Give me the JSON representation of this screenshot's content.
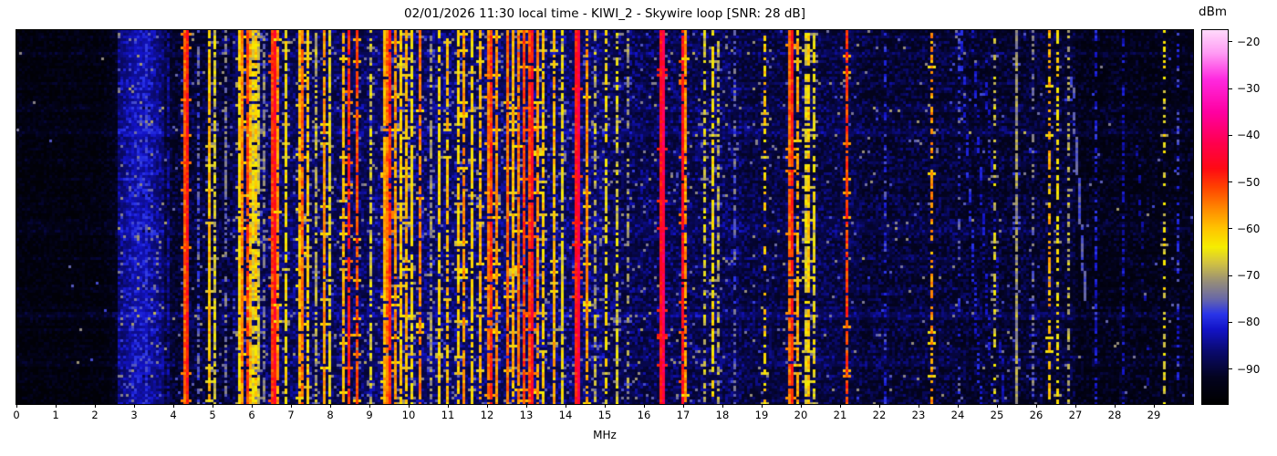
{
  "header": {
    "title": "02/01/2026 11:30 local time - KIWI_2 - Skywire loop [SNR: 28 dB]"
  },
  "colors": {
    "background": "#ffffff",
    "frame": "#000000",
    "text": "#000000"
  },
  "chart_data": {
    "type": "heatmap",
    "subtype": "radio-spectrogram-waterfall",
    "title": "02/01/2026 11:30 local time - KIWI_2 - Skywire loop [SNR: 28 dB]",
    "xlabel": "MHz",
    "x_range_mhz": [
      0,
      30
    ],
    "x_ticks": [
      0,
      1,
      2,
      3,
      4,
      5,
      6,
      7,
      8,
      9,
      10,
      11,
      12,
      13,
      14,
      15,
      16,
      17,
      18,
      19,
      20,
      21,
      22,
      23,
      24,
      25,
      26,
      27,
      28,
      29
    ],
    "grid": false,
    "legend": "colorbar-right",
    "colorbar": {
      "label": "dBm",
      "vmin": -97.5,
      "vmax": -17.5,
      "ticks": [
        {
          "v": -20,
          "label": "−20"
        },
        {
          "v": -30,
          "label": "−30"
        },
        {
          "v": -40,
          "label": "−40"
        },
        {
          "v": -50,
          "label": "−50"
        },
        {
          "v": -60,
          "label": "−60"
        },
        {
          "v": -70,
          "label": "−70"
        },
        {
          "v": -80,
          "label": "−80"
        },
        {
          "v": -90,
          "label": "−90"
        }
      ],
      "stops": [
        {
          "t": 0.0,
          "c": "#000000"
        },
        {
          "t": 0.07,
          "c": "#03031f"
        },
        {
          "t": 0.14,
          "c": "#0a0a6e"
        },
        {
          "t": 0.2,
          "c": "#1313c8"
        },
        {
          "t": 0.24,
          "c": "#2a35e8"
        },
        {
          "t": 0.28,
          "c": "#6868a8"
        },
        {
          "t": 0.33,
          "c": "#9a9176"
        },
        {
          "t": 0.38,
          "c": "#d6c63e"
        },
        {
          "t": 0.42,
          "c": "#f6ee00"
        },
        {
          "t": 0.47,
          "c": "#ffc400"
        },
        {
          "t": 0.52,
          "c": "#ff8c00"
        },
        {
          "t": 0.58,
          "c": "#ff4200"
        },
        {
          "t": 0.63,
          "c": "#ff0a14"
        },
        {
          "t": 0.7,
          "c": "#ff0050"
        },
        {
          "t": 0.78,
          "c": "#ff00a0"
        },
        {
          "t": 0.87,
          "c": "#ff2ae0"
        },
        {
          "t": 0.94,
          "c": "#ff9cf4"
        },
        {
          "t": 1.0,
          "c": "#ffd9fb"
        }
      ]
    },
    "noise_regions": [
      {
        "f0": 0.0,
        "f1": 2.55,
        "floor": -96.5,
        "jit": 5.0,
        "fleck": 0.002
      },
      {
        "f0": 2.55,
        "f1": 3.75,
        "floor": -91.0,
        "jit": 7.0,
        "fleck": 0.05
      },
      {
        "f0": 3.75,
        "f1": 4.2,
        "floor": -93.5,
        "jit": 6.5,
        "fleck": 0.01
      },
      {
        "f0": 4.2,
        "f1": 5.5,
        "floor": -92.5,
        "jit": 7.0,
        "fleck": 0.02
      },
      {
        "f0": 5.5,
        "f1": 9.0,
        "floor": -90.5,
        "jit": 8.0,
        "fleck": 0.04
      },
      {
        "f0": 9.0,
        "f1": 15.0,
        "floor": -89.5,
        "jit": 8.0,
        "fleck": 0.06
      },
      {
        "f0": 15.0,
        "f1": 18.5,
        "floor": -91.0,
        "jit": 8.0,
        "fleck": 0.03
      },
      {
        "f0": 18.5,
        "f1": 21.5,
        "floor": -91.5,
        "jit": 7.0,
        "fleck": 0.02
      },
      {
        "f0": 21.5,
        "f1": 24.0,
        "floor": -92.5,
        "jit": 7.0,
        "fleck": 0.012
      },
      {
        "f0": 24.0,
        "f1": 27.0,
        "floor": -93.0,
        "jit": 7.0,
        "fleck": 0.015
      },
      {
        "f0": 27.0,
        "f1": 30.0,
        "floor": -95.0,
        "jit": 6.0,
        "fleck": 0.006
      }
    ],
    "broadband_glow": {
      "center_mhz": 3.15,
      "sigma_mhz": 0.4,
      "amp_db": 6.5
    },
    "signals": [
      {
        "f": 3.32,
        "w": 0.07,
        "p": -80,
        "d": 0.85
      },
      {
        "f": 3.9,
        "w": 0.07,
        "p": -85,
        "d": 0.8
      },
      {
        "f": 4.33,
        "w": 0.1,
        "p": -48,
        "d": 1.0
      },
      {
        "f": 4.62,
        "w": 0.07,
        "p": -76,
        "d": 0.6
      },
      {
        "f": 4.93,
        "w": 0.08,
        "p": -60,
        "d": 0.95
      },
      {
        "f": 5.07,
        "w": 0.07,
        "p": -67,
        "d": 0.8
      },
      {
        "f": 5.31,
        "w": 0.07,
        "p": -74,
        "d": 0.6
      },
      {
        "f": 5.66,
        "w": 0.08,
        "p": -62,
        "d": 0.9
      },
      {
        "f": 5.77,
        "w": 0.09,
        "p": -56,
        "d": 0.95
      },
      {
        "f": 5.88,
        "w": 0.08,
        "p": -51,
        "d": 0.9
      },
      {
        "f": 5.97,
        "w": 0.08,
        "p": -59,
        "d": 0.9
      },
      {
        "f": 6.07,
        "w": 0.08,
        "p": -61,
        "d": 0.85
      },
      {
        "f": 6.18,
        "w": 0.07,
        "p": -68,
        "d": 0.8
      },
      {
        "f": 6.31,
        "w": 0.07,
        "p": -73,
        "d": 0.6
      },
      {
        "f": 6.56,
        "w": 0.13,
        "p": -46,
        "d": 1.0
      },
      {
        "f": 6.68,
        "w": 0.07,
        "p": -57,
        "d": 0.85
      },
      {
        "f": 6.89,
        "w": 0.07,
        "p": -63,
        "d": 0.8
      },
      {
        "f": 7.21,
        "w": 0.08,
        "p": -59,
        "d": 0.9
      },
      {
        "f": 7.32,
        "w": 0.08,
        "p": -54,
        "d": 0.9
      },
      {
        "f": 7.44,
        "w": 0.07,
        "p": -61,
        "d": 0.85
      },
      {
        "f": 7.62,
        "w": 0.07,
        "p": -69,
        "d": 0.7
      },
      {
        "f": 7.86,
        "w": 0.08,
        "p": -57,
        "d": 0.9
      },
      {
        "f": 8.02,
        "w": 0.07,
        "p": -65,
        "d": 0.8
      },
      {
        "f": 8.34,
        "w": 0.07,
        "p": -59,
        "d": 0.85
      },
      {
        "f": 8.46,
        "w": 0.07,
        "p": -49,
        "d": 0.9
      },
      {
        "f": 8.66,
        "w": 0.08,
        "p": -52,
        "d": 0.9
      },
      {
        "f": 9.06,
        "w": 0.07,
        "p": -67,
        "d": 0.7
      },
      {
        "f": 9.41,
        "w": 0.09,
        "p": -54,
        "d": 0.95
      },
      {
        "f": 9.52,
        "w": 0.09,
        "p": -49,
        "d": 0.95
      },
      {
        "f": 9.66,
        "w": 0.08,
        "p": -57,
        "d": 0.9
      },
      {
        "f": 9.77,
        "w": 0.07,
        "p": -61,
        "d": 0.85
      },
      {
        "f": 9.91,
        "w": 0.07,
        "p": -59,
        "d": 0.85
      },
      {
        "f": 10.06,
        "w": 0.07,
        "p": -64,
        "d": 0.8
      },
      {
        "f": 10.31,
        "w": 0.08,
        "p": -55,
        "d": 0.9
      },
      {
        "f": 10.56,
        "w": 0.07,
        "p": -71,
        "d": 0.6
      },
      {
        "f": 10.76,
        "w": 0.07,
        "p": -62,
        "d": 0.8
      },
      {
        "f": 11.01,
        "w": 0.07,
        "p": -60,
        "d": 0.8
      },
      {
        "f": 11.26,
        "w": 0.07,
        "p": -61,
        "d": 0.85
      },
      {
        "f": 11.41,
        "w": 0.08,
        "p": -57,
        "d": 0.85
      },
      {
        "f": 11.61,
        "w": 0.07,
        "p": -63,
        "d": 0.8
      },
      {
        "f": 11.81,
        "w": 0.08,
        "p": -59,
        "d": 0.85
      },
      {
        "f": 12.06,
        "w": 0.1,
        "p": -50,
        "d": 0.95
      },
      {
        "f": 12.21,
        "w": 0.07,
        "p": -57,
        "d": 0.9
      },
      {
        "f": 12.51,
        "w": 0.09,
        "p": -54,
        "d": 0.95
      },
      {
        "f": 12.66,
        "w": 0.08,
        "p": -59,
        "d": 0.9
      },
      {
        "f": 12.81,
        "w": 0.09,
        "p": -55,
        "d": 0.95
      },
      {
        "f": 12.96,
        "w": 0.08,
        "p": -51,
        "d": 0.95
      },
      {
        "f": 13.11,
        "w": 0.1,
        "p": -47,
        "d": 0.95
      },
      {
        "f": 13.29,
        "w": 0.08,
        "p": -57,
        "d": 0.9
      },
      {
        "f": 13.46,
        "w": 0.07,
        "p": -61,
        "d": 0.85
      },
      {
        "f": 13.71,
        "w": 0.07,
        "p": -59,
        "d": 0.85
      },
      {
        "f": 13.91,
        "w": 0.07,
        "p": -65,
        "d": 0.8
      },
      {
        "f": 14.31,
        "w": 0.12,
        "p": -43,
        "d": 1.0
      },
      {
        "f": 14.52,
        "w": 0.07,
        "p": -57,
        "d": 0.85
      },
      {
        "f": 14.76,
        "w": 0.07,
        "p": -69,
        "d": 0.6
      },
      {
        "f": 15.06,
        "w": 0.07,
        "p": -64,
        "d": 0.7
      },
      {
        "f": 15.31,
        "w": 0.07,
        "p": -67,
        "d": 0.7
      },
      {
        "f": 15.56,
        "w": 0.07,
        "p": -71,
        "d": 0.5
      },
      {
        "f": 16.45,
        "w": 0.13,
        "p": -42,
        "d": 1.0
      },
      {
        "f": 16.96,
        "w": 0.08,
        "p": -47,
        "d": 0.9
      },
      {
        "f": 17.08,
        "w": 0.07,
        "p": -57,
        "d": 0.7
      },
      {
        "f": 17.56,
        "w": 0.07,
        "p": -67,
        "d": 0.6
      },
      {
        "f": 17.77,
        "w": 0.07,
        "p": -63,
        "d": 0.7
      },
      {
        "f": 17.92,
        "w": 0.07,
        "p": -69,
        "d": 0.6
      },
      {
        "f": 18.31,
        "w": 0.07,
        "p": -75,
        "d": 0.5
      },
      {
        "f": 19.06,
        "w": 0.07,
        "p": -61,
        "d": 0.4
      },
      {
        "f": 19.75,
        "w": 0.09,
        "p": -49,
        "d": 0.95
      },
      {
        "f": 19.92,
        "w": 0.07,
        "p": -59,
        "d": 0.8
      },
      {
        "f": 20.16,
        "w": 0.09,
        "p": -61,
        "d": 0.85
      },
      {
        "f": 20.32,
        "w": 0.07,
        "p": -65,
        "d": 0.7
      },
      {
        "f": 21.15,
        "w": 0.07,
        "p": -51,
        "d": 0.85
      },
      {
        "f": 22.12,
        "w": 0.07,
        "p": -79,
        "d": 0.4
      },
      {
        "f": 23.33,
        "w": 0.08,
        "p": -57,
        "d": 0.55
      },
      {
        "f": 24.02,
        "w": 0.07,
        "p": -77,
        "d": 0.3
      },
      {
        "f": 24.92,
        "w": 0.07,
        "p": -67,
        "d": 0.35
      },
      {
        "f": 25.47,
        "w": 0.07,
        "p": -71,
        "d": 0.95
      },
      {
        "f": 25.92,
        "w": 0.07,
        "p": -74,
        "d": 0.4
      },
      {
        "f": 26.34,
        "w": 0.08,
        "p": -59,
        "d": 0.5
      },
      {
        "f": 26.56,
        "w": 0.07,
        "p": -63,
        "d": 0.45
      },
      {
        "f": 26.82,
        "w": 0.07,
        "p": -69,
        "d": 0.4
      },
      {
        "f": 27.52,
        "w": 0.07,
        "p": -81,
        "d": 0.5
      },
      {
        "f": 28.22,
        "w": 0.07,
        "p": -83,
        "d": 0.4
      },
      {
        "f": 29.27,
        "w": 0.07,
        "p": -65,
        "d": 0.35
      },
      {
        "f": 29.62,
        "w": 0.07,
        "p": -79,
        "d": 0.4
      }
    ],
    "time_streaks": [
      {
        "y": 0.06,
        "s": 2.2
      },
      {
        "y": 0.205,
        "s": 1.8
      },
      {
        "y": 0.268,
        "s": 3.2
      },
      {
        "y": 0.525,
        "s": 1.5
      },
      {
        "y": 0.758,
        "s": 3.5
      },
      {
        "y": 0.88,
        "s": 1.5
      }
    ],
    "drift_traces": [
      {
        "f0": 24.05,
        "f1": 24.55,
        "y0": 0.0,
        "y1": 1.0,
        "p": -80,
        "d": 0.45
      },
      {
        "f0": 24.35,
        "f1": 24.85,
        "y0": 0.0,
        "y1": 1.0,
        "p": -81,
        "d": 0.4
      },
      {
        "f0": 24.65,
        "f1": 25.15,
        "y0": 0.05,
        "y1": 1.0,
        "p": -82,
        "d": 0.35
      },
      {
        "f0": 26.88,
        "f1": 27.22,
        "y0": 0.12,
        "y1": 0.72,
        "p": -76,
        "d": 0.85
      },
      {
        "f0": 28.55,
        "f1": 28.85,
        "y0": 0.3,
        "y1": 1.0,
        "p": -84,
        "d": 0.3
      }
    ],
    "seed": 7
  }
}
